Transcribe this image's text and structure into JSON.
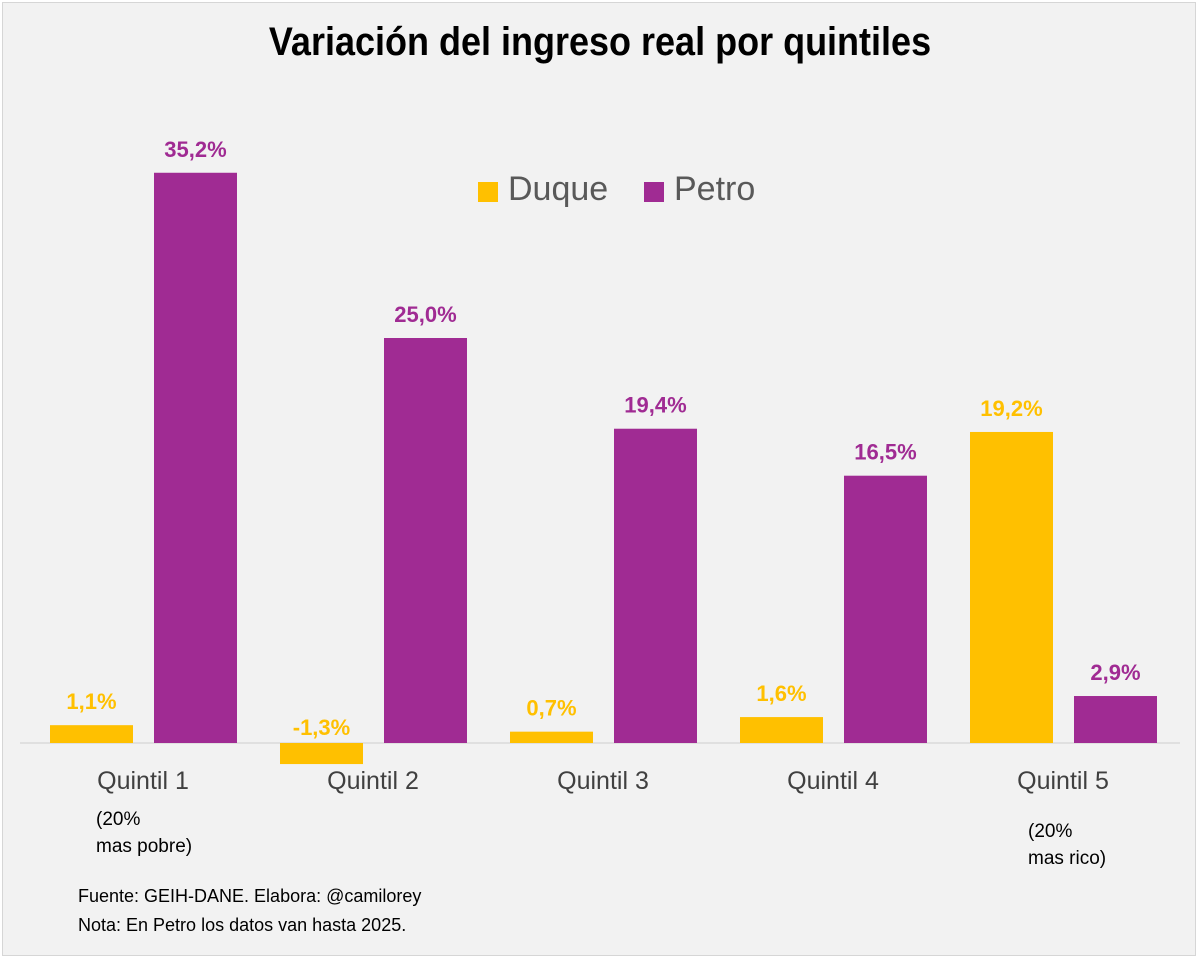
{
  "chart_data": {
    "type": "bar",
    "title": "Variación del ingreso real por quintiles",
    "categories": [
      "Quintil 1",
      "Quintil 2",
      "Quintil 3",
      "Quintil 4",
      "Quintil 5"
    ],
    "series": [
      {
        "name": "Duque",
        "color": "#FFC000",
        "values": [
          1.1,
          -1.3,
          0.7,
          1.6,
          19.2
        ],
        "labels": [
          "1,1%",
          "-1,3%",
          "0,7%",
          "1,6%",
          "19,2%"
        ]
      },
      {
        "name": "Petro",
        "color": "#A02B93",
        "values": [
          35.2,
          25.0,
          19.4,
          16.5,
          2.9
        ],
        "labels": [
          "35,2%",
          "25,0%",
          "19,4%",
          "16,5%",
          "2,9%"
        ]
      }
    ],
    "legend_position": "top-right",
    "grid": false,
    "y_axis_visible": false,
    "category_notes": {
      "q1": [
        "(20%",
        "mas pobre)"
      ],
      "q5": [
        "(20%",
        "mas rico)"
      ]
    }
  },
  "footer": {
    "source": "Fuente: GEIH-DANE. Elabora: @camilorey",
    "note": "Nota: En Petro los datos van hasta 2025."
  }
}
